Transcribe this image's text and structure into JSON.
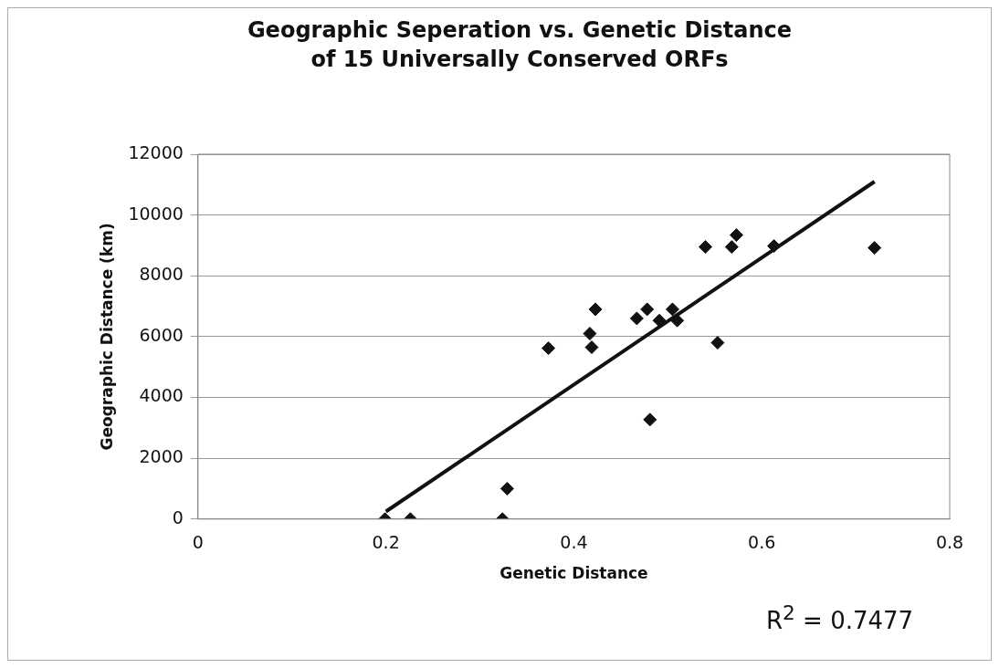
{
  "chart_data": {
    "type": "scatter",
    "title": "Geographic Seperation vs. Genetic Distance of 15 Universally Conserved ORFs",
    "xlabel": "Genetic Distance",
    "ylabel": "Geographic Distance (km)",
    "annotations": [
      "R$^{2}$ = 0.7477"
    ],
    "xlim": [
      0,
      0.8
    ],
    "xticks": [
      0,
      0.2,
      0.4,
      0.6,
      0.8
    ],
    "ylim": [
      0,
      12000
    ],
    "yticks": [
      0,
      2000,
      4000,
      6000,
      8000,
      10000,
      12000
    ],
    "grid": "y",
    "legend": false,
    "marker": "diamond",
    "series": [
      {
        "type": "scatter",
        "color": "#111111",
        "x": [
          0.199,
          0.226,
          0.324,
          0.329,
          0.373,
          0.417,
          0.419,
          0.423,
          0.467,
          0.478,
          0.481,
          0.491,
          0.505,
          0.51,
          0.54,
          0.553,
          0.568,
          0.573,
          0.613,
          0.72
        ],
        "values": [
          0,
          0,
          0,
          1000,
          5620,
          6100,
          5650,
          6900,
          6600,
          6900,
          3270,
          6530,
          6900,
          6530,
          8950,
          5800,
          8950,
          9340,
          8980,
          8920
        ]
      },
      {
        "type": "line",
        "marker": "none",
        "color": "#111111",
        "x": [
          0.2,
          0.72
        ],
        "values": [
          250,
          11100
        ]
      }
    ]
  }
}
